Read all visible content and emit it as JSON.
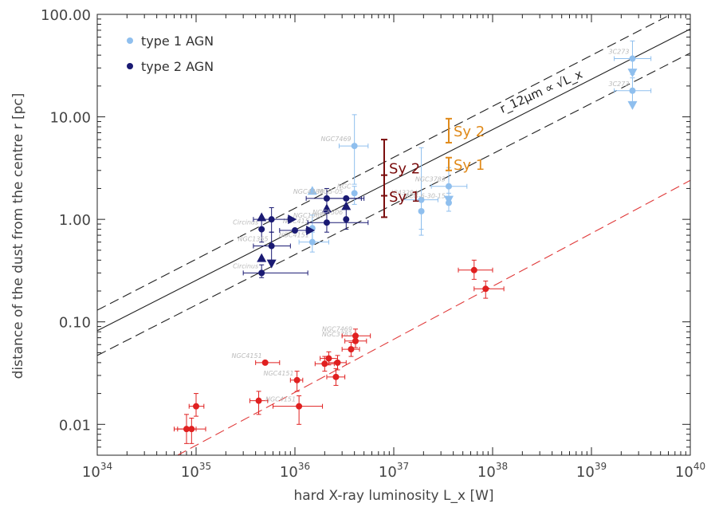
{
  "chart_data": {
    "type": "scatter",
    "xlabel": "hard X-ray luminosity L_x [W]",
    "ylabel": "distance of the dust from the centre r [pc]",
    "x_scale": "log",
    "y_scale": "log",
    "xlim": [
      1e+34,
      1e+40
    ],
    "ylim": [
      0.005,
      100
    ],
    "x_ticks": [
      {
        "value": 1e+34,
        "label": "10^34"
      },
      {
        "value": 1e+35,
        "label": "10^35"
      },
      {
        "value": 1e+36,
        "label": "10^36"
      },
      {
        "value": 1e+37,
        "label": "10^37"
      },
      {
        "value": 1e+38,
        "label": "10^38"
      },
      {
        "value": 1e+39,
        "label": "10^39"
      },
      {
        "value": 1e+40,
        "label": "10^40"
      }
    ],
    "y_ticks": [
      {
        "value": 0.01,
        "label": "0.01"
      },
      {
        "value": 0.1,
        "label": "0.10"
      },
      {
        "value": 1,
        "label": "1.00"
      },
      {
        "value": 10,
        "label": "10.00"
      },
      {
        "value": 100,
        "label": "100.00"
      }
    ],
    "legend": {
      "position": "top-left",
      "entries": [
        {
          "label": "type 1 AGN",
          "color": "#8fbfee"
        },
        {
          "label": "type 2 AGN",
          "color": "#1a1a73"
        }
      ]
    },
    "relation_label": "r_12μm ∝ √L_x",
    "lines": [
      {
        "style": "solid",
        "color": "#222222",
        "x": [
          1e+34,
          1e+40
        ],
        "y": [
          0.082,
          72
        ]
      },
      {
        "style": "dashed",
        "color": "#222222",
        "x": [
          1e+34,
          1e+40
        ],
        "y": [
          0.13,
          125
        ]
      },
      {
        "style": "dashed",
        "color": "#222222",
        "x": [
          1e+34,
          1e+40
        ],
        "y": [
          0.047,
          42
        ]
      },
      {
        "style": "dashed",
        "color": "#e03a3a",
        "x": [
          6.5e+34,
          1e+40
        ],
        "y": [
          0.005,
          2.4
        ]
      }
    ],
    "ranges": [
      {
        "label": "Sy 2",
        "color": "#7a0c0c",
        "x": 8e+36,
        "y_low": 1.7,
        "y_high": 6.0
      },
      {
        "label": "Sy 1",
        "color": "#7a0c0c",
        "x": 8e+36,
        "y_low": 1.05,
        "y_high": 2.7
      },
      {
        "label": "Sy 2",
        "color": "#e08a1a",
        "x": 3.6e+37,
        "y_low": 5.6,
        "y_high": 9.6
      },
      {
        "label": "Sy 1",
        "color": "#e08a1a",
        "x": 3.6e+37,
        "y_low": 3.0,
        "y_high": 4.0
      }
    ],
    "series": [
      {
        "name": "type 1 AGN",
        "color": "#8fbfee",
        "points": [
          {
            "x": 4e+36,
            "y": 5.2,
            "label": "NGC7469",
            "ylo": 2.2,
            "yhi": 10.5,
            "xlo": 2.8e+36,
            "xhi": 5.5e+36
          },
          {
            "x": 4e+36,
            "y": 1.8,
            "label": "NGC",
            "ylo": 1.4,
            "yhi": 2.1
          },
          {
            "x": 1.5e+36,
            "y": 1.9,
            "limit": "lower"
          },
          {
            "x": 1.5e+36,
            "y": 0.82,
            "label": "NGC415",
            "ylo": 0.6,
            "yhi": 1.1
          },
          {
            "x": 1.5e+36,
            "y": 0.6,
            "label": "NGC4151",
            "ylo": 0.48,
            "yhi": 0.75,
            "xlo": 1.1e+36,
            "xhi": 2.2e+36
          },
          {
            "x": 1.9e+37,
            "y": 1.55,
            "label": "IC4329A",
            "ylo": 0.7,
            "yhi": 5.0,
            "xlo": 1.2e+37,
            "xhi": 2.8e+37
          },
          {
            "x": 1.9e+37,
            "y": 1.2,
            "ylo": 0.8,
            "yhi": 1.6
          },
          {
            "x": 3.6e+37,
            "y": 2.1,
            "label": "NGC3783",
            "ylo": 1.4,
            "yhi": 3.2,
            "xlo": 2.4e+37,
            "xhi": 5.5e+37
          },
          {
            "x": 3.6e+37,
            "y": 1.45,
            "label": "MCG-6-30-15",
            "ylo": 1.2,
            "yhi": 1.8
          },
          {
            "x": 3.6e+37,
            "y": 1.55,
            "limit": "upper"
          },
          {
            "x": 2.6e+39,
            "y": 37,
            "label": "3C273",
            "ylo": 26,
            "yhi": 55,
            "xlo": 1.7e+39,
            "xhi": 4e+39
          },
          {
            "x": 2.6e+39,
            "y": 27,
            "limit": "upper"
          },
          {
            "x": 2.6e+39,
            "y": 18,
            "label": "3C273",
            "ylo": 14,
            "yhi": 24,
            "xlo": 1.7e+39,
            "xhi": 4e+39
          },
          {
            "x": 2.6e+39,
            "y": 13,
            "limit": "upper"
          }
        ]
      },
      {
        "name": "type 2 AGN",
        "color": "#1a1a73",
        "points": [
          {
            "x": 5.8e+35,
            "y": 1.0,
            "ylo": 0.75,
            "yhi": 1.3,
            "xlo": 3.8e+35,
            "xhi": 8.5e+35
          },
          {
            "x": 4.6e+35,
            "y": 0.8,
            "label": "Circinus",
            "ylo": 0.6,
            "yhi": 1.0
          },
          {
            "x": 4.6e+35,
            "y": 1.05,
            "limit": "lower"
          },
          {
            "x": 5.8e+35,
            "y": 0.55,
            "label": "NGC1365",
            "ylo": 0.4,
            "yhi": 0.75,
            "xlo": 3.8e+35,
            "xhi": 9e+35
          },
          {
            "x": 4.6e+35,
            "y": 0.42,
            "limit": "lower"
          },
          {
            "x": 5.8e+35,
            "y": 0.37,
            "limit": "upper"
          },
          {
            "x": 4.6e+35,
            "y": 0.3,
            "label": "Circinus",
            "ylo": 0.27,
            "yhi": 0.36,
            "xlo": 3e+35,
            "xhi": 1.35e+36
          },
          {
            "x": 2.1e+36,
            "y": 1.6,
            "label": "NGC4388",
            "ylo": 1.25,
            "yhi": 2.0,
            "xlo": 1.3e+36,
            "xhi": 4.7e+36
          },
          {
            "x": 2.1e+36,
            "y": 1.28,
            "limit": "lower"
          },
          {
            "x": 2.1e+36,
            "y": 0.93,
            "label": "NGC1068",
            "ylo": 0.75,
            "yhi": 1.15,
            "xlo": 1.35e+36,
            "xhi": 5.5e+36
          },
          {
            "x": 3.3e+36,
            "y": 1.0,
            "label": "NGC5506",
            "ylo": 0.8,
            "yhi": 1.3
          },
          {
            "x": 3.3e+36,
            "y": 1.35,
            "limit": "lower"
          },
          {
            "x": 3.3e+36,
            "y": 1.6,
            "label": "MCG-05",
            "xlo": 2e+36,
            "xhi": 5e+36
          },
          {
            "x": 1e+36,
            "y": 0.78,
            "xlo": 7e+35,
            "xhi": 1.3e+36
          }
        ]
      },
      {
        "name": "",
        "color": "#e02020",
        "points": [
          {
            "x": 8e+34,
            "y": 0.009,
            "ylo": 0.0065,
            "yhi": 0.0125,
            "xlo": 6e+34,
            "xhi": 1e+35
          },
          {
            "x": 9e+34,
            "y": 0.009,
            "ylo": 0.0065,
            "yhi": 0.0115,
            "xlo": 6.5e+34,
            "xhi": 1.25e+35
          },
          {
            "x": 1e+35,
            "y": 0.015,
            "ylo": 0.012,
            "yhi": 0.02,
            "xlo": 8.5e+34,
            "xhi": 1.2e+35
          },
          {
            "x": 4.3e+35,
            "y": 0.017,
            "ylo": 0.0125,
            "yhi": 0.021,
            "xlo": 3.5e+35,
            "xhi": 5.3e+35
          },
          {
            "x": 5e+35,
            "y": 0.04,
            "label": "NGC4151",
            "xlo": 4e+35,
            "xhi": 7e+35
          },
          {
            "x": 1.1e+36,
            "y": 0.015,
            "ylo": 0.01,
            "yhi": 0.019,
            "label": "NGC4151",
            "xlo": 6e+35,
            "xhi": 1.9e+36
          },
          {
            "x": 1.05e+36,
            "y": 0.027,
            "ylo": 0.021,
            "yhi": 0.033,
            "label": "NGC4151",
            "xlo": 9e+35,
            "xhi": 1.2e+36
          },
          {
            "x": 2e+36,
            "y": 0.039,
            "ylo": 0.033,
            "yhi": 0.046,
            "xlo": 1.6e+36,
            "xhi": 2.5e+36
          },
          {
            "x": 2.2e+36,
            "y": 0.044,
            "ylo": 0.038,
            "yhi": 0.051,
            "xlo": 1.8e+36,
            "xhi": 2.7e+36
          },
          {
            "x": 2.7e+36,
            "y": 0.04,
            "ylo": 0.034,
            "yhi": 0.047,
            "xlo": 2.2e+36,
            "xhi": 3.3e+36
          },
          {
            "x": 2.6e+36,
            "y": 0.029,
            "ylo": 0.024,
            "yhi": 0.035,
            "xlo": 2.1e+36,
            "xhi": 3.2e+36
          },
          {
            "x": 3.7e+36,
            "y": 0.054,
            "ylo": 0.046,
            "yhi": 0.063,
            "xlo": 3e+36,
            "xhi": 4.5e+36
          },
          {
            "x": 4.1e+36,
            "y": 0.065,
            "ylo": 0.056,
            "yhi": 0.075,
            "label": "NGC3783",
            "xlo": 3.2e+36,
            "xhi": 5.3e+36
          },
          {
            "x": 4.1e+36,
            "y": 0.073,
            "ylo": 0.063,
            "yhi": 0.085,
            "label": "NGC7469",
            "xlo": 3e+36,
            "xhi": 5.8e+36
          },
          {
            "x": 6.5e+37,
            "y": 0.32,
            "ylo": 0.26,
            "yhi": 0.4,
            "xlo": 4.5e+37,
            "xhi": 1e+38
          },
          {
            "x": 8.5e+37,
            "y": 0.21,
            "ylo": 0.17,
            "yhi": 0.25,
            "xlo": 6.5e+37,
            "xhi": 1.3e+38
          }
        ]
      }
    ]
  }
}
